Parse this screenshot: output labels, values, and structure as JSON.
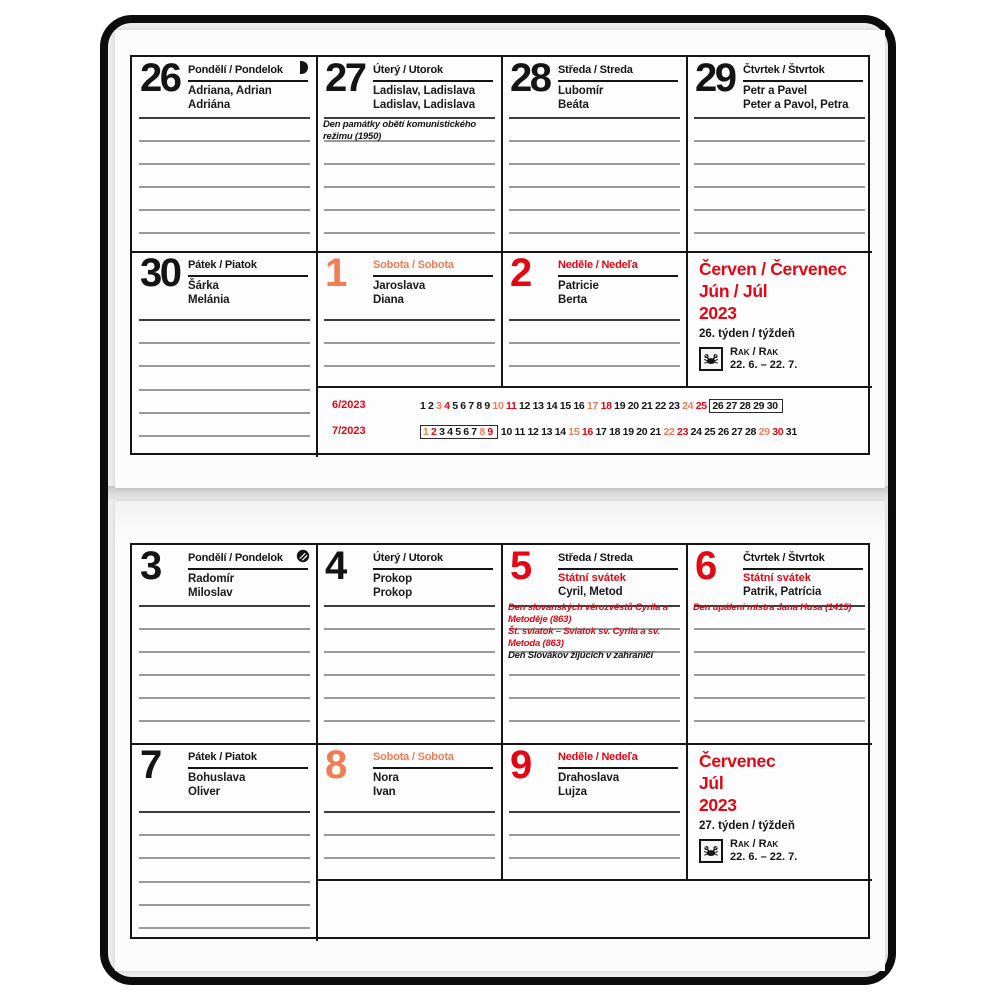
{
  "palette": {
    "red": "#e30613",
    "saturday": "#f07e55",
    "ink": "#141414"
  },
  "pages": [
    {
      "name": "week-26",
      "month_block": {
        "title_lines": [
          "Červen / Červenec",
          "Jún / Júl",
          "2023"
        ],
        "week_label": "26. týden / týždeň",
        "zodiac_name": "Rak / Rak",
        "zodiac_range": "22. 6. – 22. 7.",
        "zodiac_icon": "cancer-crab-icon"
      },
      "days": [
        {
          "num": "26",
          "header": "Pondělí / Pondelok",
          "style": "weekday",
          "names": [
            "Adriana, Adrian",
            "Adriána"
          ],
          "moon": "first-quarter-moon-icon",
          "row": 1,
          "col": 1
        },
        {
          "num": "27",
          "header": "Úterý / Utorok",
          "style": "weekday",
          "names": [
            "Ladislav, Ladislava",
            "Ladislav, Ladislava"
          ],
          "notes": [
            {
              "text": "Den památky obětí komunistického režimu (1950)",
              "color": "ink"
            }
          ],
          "row": 1,
          "col": 2
        },
        {
          "num": "28",
          "header": "Středa / Streda",
          "style": "weekday",
          "names": [
            "Lubomír",
            "Beáta"
          ],
          "row": 1,
          "col": 3
        },
        {
          "num": "29",
          "header": "Čtvrtek / Štvrtok",
          "style": "weekday",
          "names": [
            "Petr a Pavel",
            "Peter a Pavol, Petra"
          ],
          "row": 1,
          "col": 4
        },
        {
          "num": "30",
          "header": "Pátek / Piatok",
          "style": "weekday",
          "names": [
            "Šárka",
            "Melánia"
          ],
          "row": 2,
          "col": 1
        },
        {
          "num": "1",
          "header": "Sobota / Sobota",
          "style": "saturday",
          "names": [
            "Jaroslava",
            "Diana"
          ],
          "row": 2,
          "col": 2
        },
        {
          "num": "2",
          "header": "Neděle / Nedeľa",
          "style": "sunday",
          "names": [
            "Patricie",
            "Berta"
          ],
          "row": 2,
          "col": 3
        }
      ],
      "mini_calendars": [
        {
          "label": "6/2023",
          "num_days": 30,
          "saturdays": [
            3,
            10,
            17,
            24
          ],
          "sundays": [
            4,
            11,
            18,
            25
          ],
          "box_start": 26,
          "box_end": 30
        },
        {
          "label": "7/2023",
          "num_days": 31,
          "saturdays": [
            1,
            8,
            15,
            22,
            29
          ],
          "sundays": [
            2,
            9,
            16,
            23,
            30
          ],
          "box_start": 1,
          "box_end": 9
        }
      ]
    },
    {
      "name": "week-27",
      "month_block": {
        "title_lines": [
          "Červenec",
          "Júl",
          "2023"
        ],
        "week_label": "27. týden / týždeň",
        "zodiac_name": "Rak / Rak",
        "zodiac_range": "22. 6. – 22. 7.",
        "zodiac_icon": "cancer-crab-icon"
      },
      "days": [
        {
          "num": "3",
          "header": "Pondělí / Pondelok",
          "style": "weekday",
          "names": [
            "Radomír",
            "Miloslav"
          ],
          "moon": "full-moon-icon",
          "row": 1,
          "col": 1
        },
        {
          "num": "4",
          "header": "Úterý / Utorok",
          "style": "weekday",
          "names": [
            "Prokop",
            "Prokop"
          ],
          "row": 1,
          "col": 2
        },
        {
          "num": "5",
          "header": "Středa / Streda",
          "style": "holiday",
          "holiday_label": "Státní svátek",
          "names": [
            "Cyril, Metod"
          ],
          "notes": [
            {
              "text": "Den slovanských věrozvěstů Cyrila a Metoděje (863)",
              "color": "red"
            },
            {
              "text": "Št. sviatok – Sviatok sv. Cyrila a sv. Metoda (863)",
              "color": "red"
            },
            {
              "text": "Deň Slovákov žijúcich v zahraničí",
              "color": "ink"
            }
          ],
          "row": 1,
          "col": 3
        },
        {
          "num": "6",
          "header": "Čtvrtek / Štvrtok",
          "style": "holiday",
          "holiday_label": "Státní svátek",
          "names": [
            "Patrik, Patrícia"
          ],
          "notes": [
            {
              "text": "Den upálení mistra Jana Husa (1415)",
              "color": "red"
            }
          ],
          "row": 1,
          "col": 4
        },
        {
          "num": "7",
          "header": "Pátek / Piatok",
          "style": "weekday",
          "names": [
            "Bohuslava",
            "Oliver"
          ],
          "row": 2,
          "col": 1
        },
        {
          "num": "8",
          "header": "Sobota / Sobota",
          "style": "saturday",
          "names": [
            "Nora",
            "Ivan"
          ],
          "row": 2,
          "col": 2
        },
        {
          "num": "9",
          "header": "Neděle / Nedeľa",
          "style": "sunday",
          "names": [
            "Drahoslava",
            "Lujza"
          ],
          "row": 2,
          "col": 3
        }
      ],
      "mini_calendars": []
    }
  ]
}
